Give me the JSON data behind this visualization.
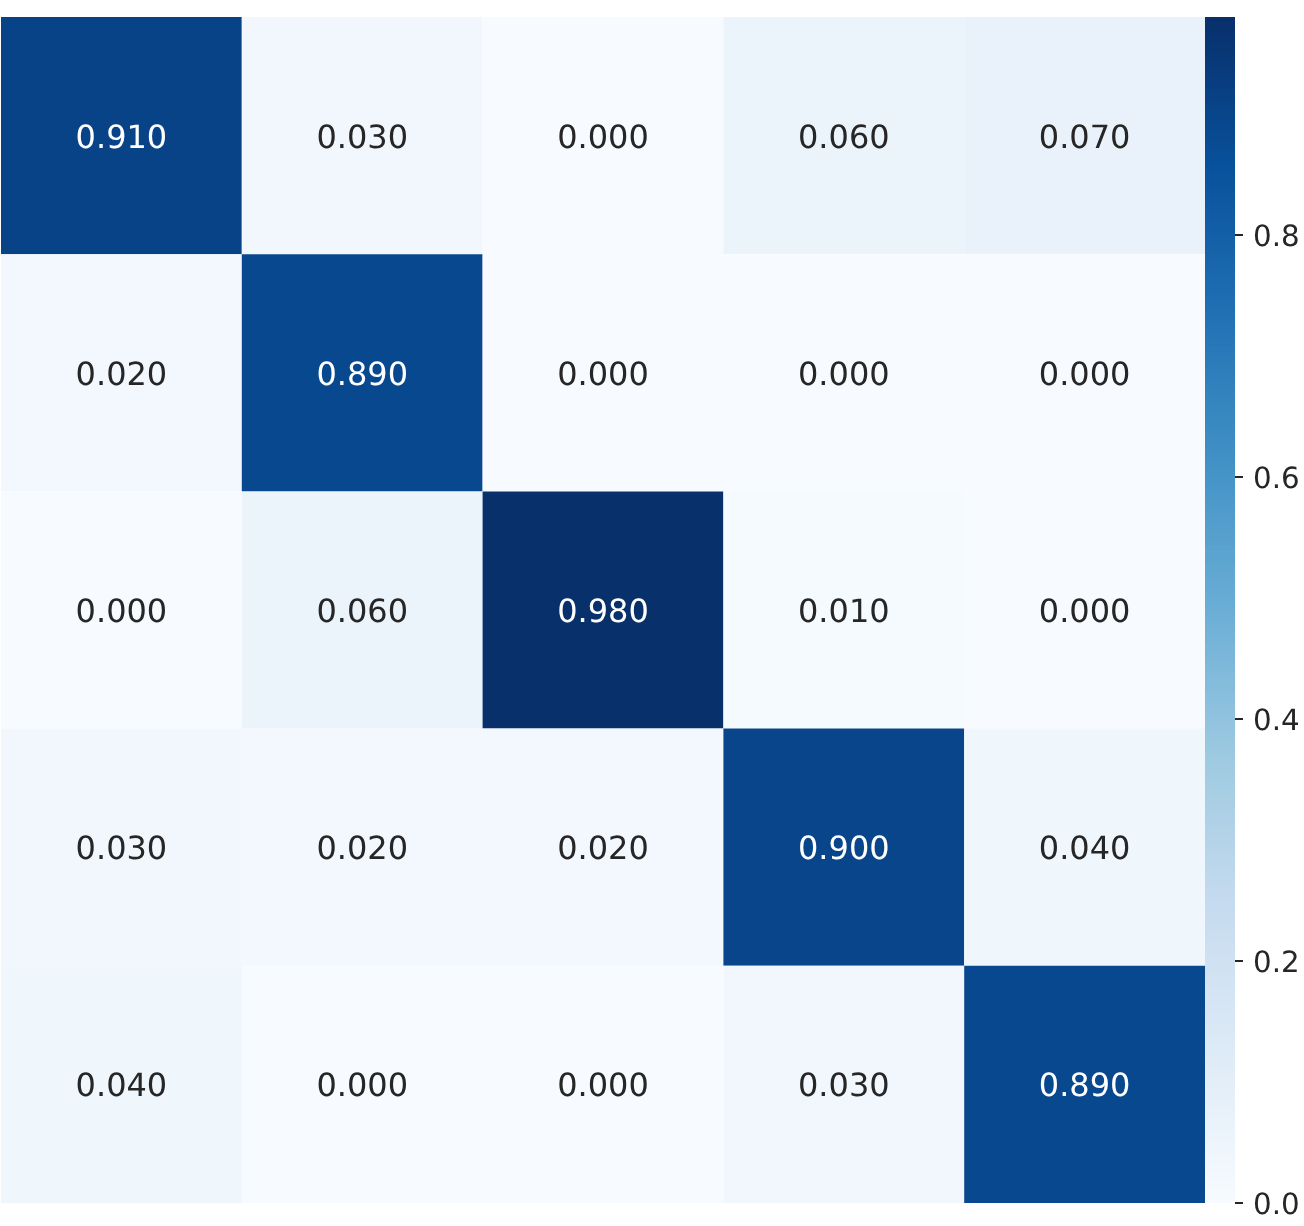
{
  "chart_data": {
    "type": "heatmap",
    "categories": [
      null,
      null,
      null,
      null,
      null
    ],
    "y_categories": [
      null,
      null,
      null,
      null,
      null
    ],
    "cells": [
      [
        0.91,
        0.03,
        0.0,
        0.06,
        0.07
      ],
      [
        0.02,
        0.89,
        0.0,
        0.0,
        0.0
      ],
      [
        0.0,
        0.06,
        0.98,
        0.01,
        0.0
      ],
      [
        0.03,
        0.02,
        0.02,
        0.9,
        0.04
      ],
      [
        0.04,
        0.0,
        0.0,
        0.03,
        0.89
      ]
    ],
    "cell_labels": [
      [
        "0.910",
        "0.030",
        "0.000",
        "0.060",
        "0.070"
      ],
      [
        "0.020",
        "0.890",
        "0.000",
        "0.000",
        "0.000"
      ],
      [
        "0.000",
        "0.060",
        "0.980",
        "0.010",
        "0.000"
      ],
      [
        "0.030",
        "0.020",
        "0.020",
        "0.900",
        "0.040"
      ],
      [
        "0.040",
        "0.000",
        "0.000",
        "0.030",
        "0.890"
      ]
    ],
    "clim": [
      0.0,
      0.98
    ],
    "cticks": [
      {
        "value": 0.0,
        "label": "0.0"
      },
      {
        "value": 0.2,
        "label": "0.2"
      },
      {
        "value": 0.4,
        "label": "0.4"
      },
      {
        "value": 0.6,
        "label": "0.6"
      },
      {
        "value": 0.8,
        "label": "0.8"
      }
    ],
    "tick_labels": false
  }
}
